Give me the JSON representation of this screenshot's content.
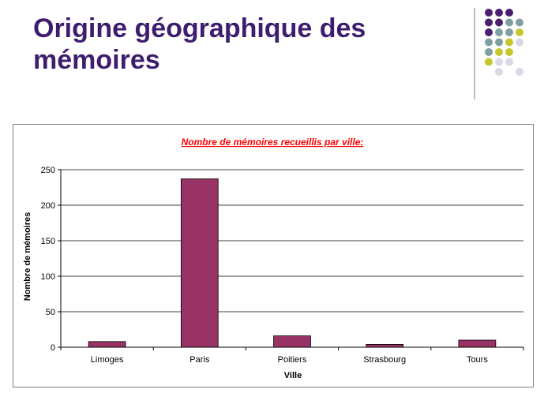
{
  "slide": {
    "title": "Origine géographique des mémoires"
  },
  "decoration": {
    "dot_rows": [
      [
        "#4b1f6f",
        "#4b1f6f",
        "#4b1f6f",
        null
      ],
      [
        "#4b1f6f",
        "#4b1f6f",
        "#7f9fa3",
        "#7f9fa3"
      ],
      [
        "#4b1f6f",
        "#7f9fa3",
        "#7f9fa3",
        "#c4c82e"
      ],
      [
        "#7f9fa3",
        "#7f9fa3",
        "#c4c82e",
        "#d9d9e6"
      ],
      [
        "#7f9fa3",
        "#c4c82e",
        "#c4c82e",
        null
      ],
      [
        "#c4c82e",
        "#d9d9e6",
        "#d9d9e6",
        null
      ],
      [
        null,
        "#d9d9e6",
        null,
        "#d9d9e6"
      ]
    ],
    "title_color": "#3f1d6e"
  },
  "chart_data": {
    "type": "bar",
    "title": "Nombre de mémoires recueillis par ville:",
    "xlabel": "Ville",
    "ylabel": "Nombre de mémoires",
    "categories": [
      "Limoges",
      "Paris",
      "Poitiers",
      "Strasbourg",
      "Tours"
    ],
    "values": [
      8,
      237,
      16,
      4,
      10
    ],
    "ylim": [
      0,
      250
    ],
    "yticks": [
      0,
      50,
      100,
      150,
      200,
      250
    ],
    "grid": true,
    "legend": "none",
    "bar_color": "#993366",
    "title_color": "#ff0000"
  }
}
